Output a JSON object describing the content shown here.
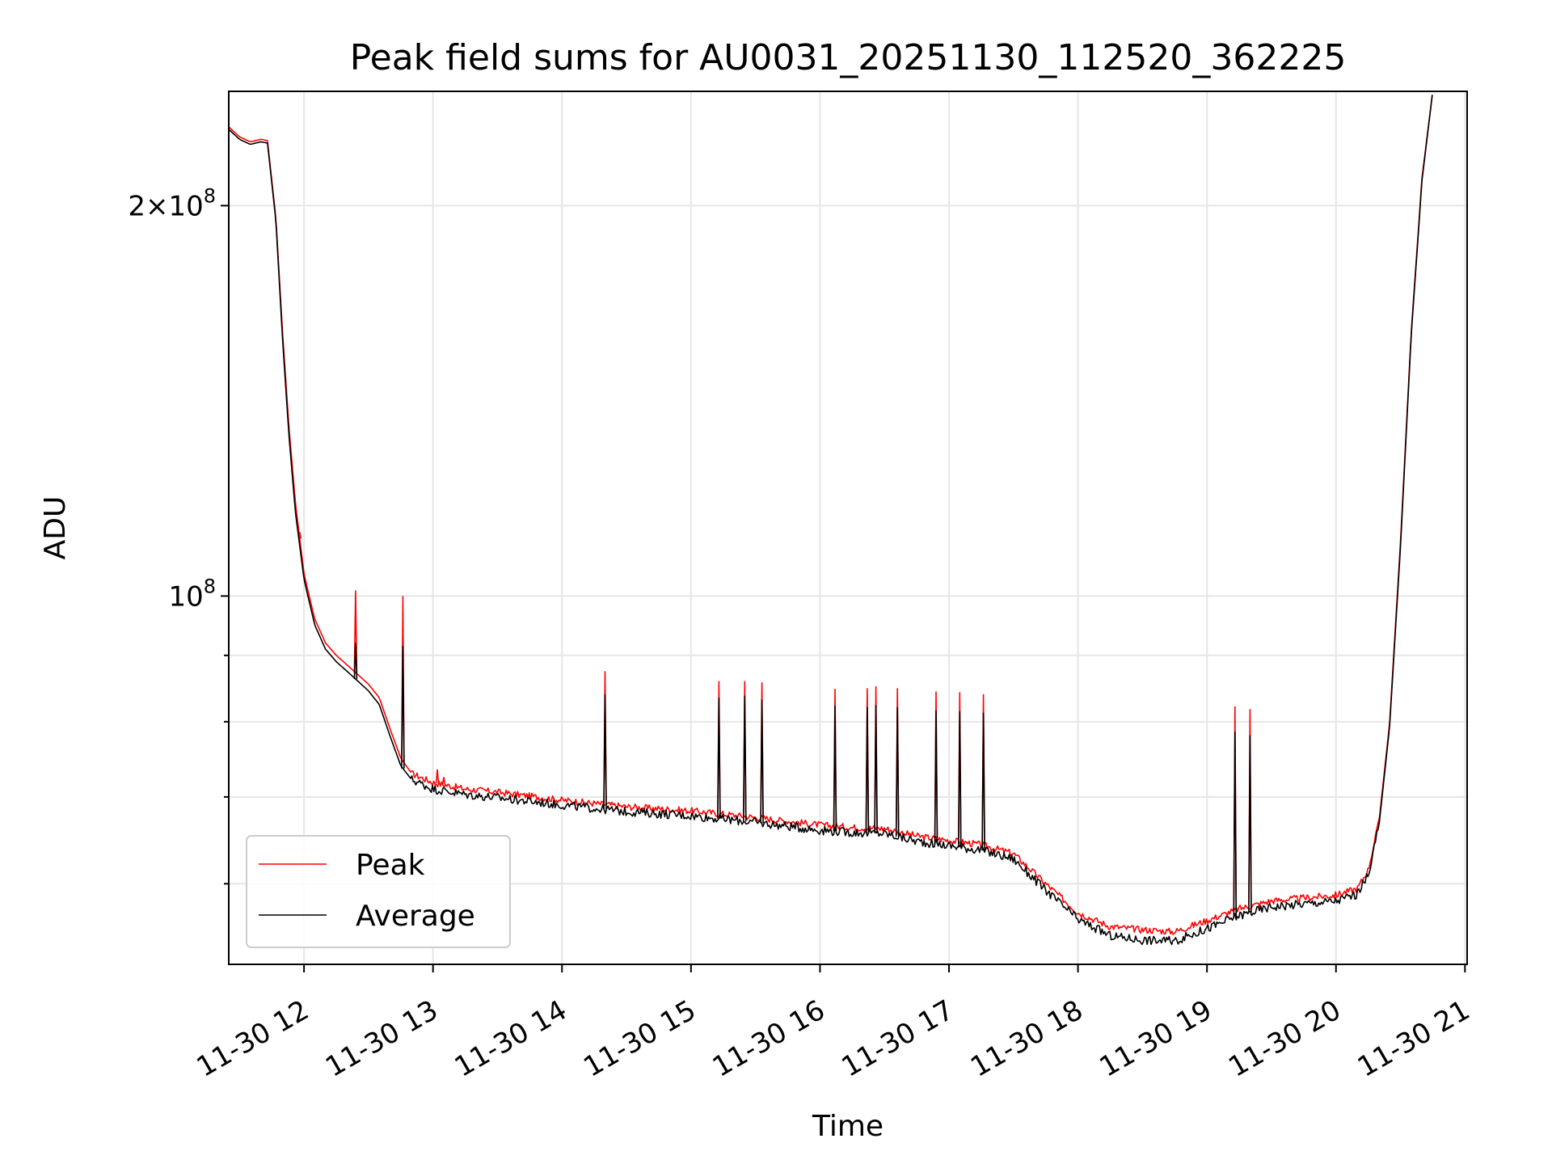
{
  "chart_data": {
    "type": "line",
    "title": "Peak field sums for AU0031_20251130_112520_362225",
    "xlabel": "Time",
    "ylabel": "ADU",
    "y_scale": "log",
    "grid": true,
    "legend_position": "lower-left",
    "xlim": [
      "11-30 11:25",
      "11-30 21:01"
    ],
    "ylim": [
      52000000,
      245000000
    ],
    "x_ticks": [
      "11-30 12",
      "11-30 13",
      "11-30 14",
      "11-30 15",
      "11-30 16",
      "11-30 17",
      "11-30 18",
      "11-30 19",
      "11-30 20",
      "11-30 21"
    ],
    "y_ticks": [
      {
        "value": 100000000,
        "base": "10",
        "exp": "8"
      },
      {
        "value": 200000000,
        "coef": "2",
        "times": "×",
        "base": "10",
        "exp": "8"
      }
    ],
    "y_minor_ticks": [
      60000000,
      70000000,
      80000000,
      90000000
    ],
    "series": [
      {
        "name": "Peak",
        "color": "#ff0000",
        "points": [
          [
            "11-30 11:25",
            230000000
          ],
          [
            "11-30 11:30",
            226000000
          ],
          [
            "11-30 11:35",
            224000000
          ],
          [
            "11-30 11:40",
            225000000
          ],
          [
            "11-30 11:43",
            224500000
          ],
          [
            "11-30 11:47",
            195000000
          ],
          [
            "11-30 11:50",
            160000000
          ],
          [
            "11-30 11:53",
            135000000
          ],
          [
            "11-30 11:56",
            118000000
          ],
          [
            "11-30 12:00",
            104000000
          ],
          [
            "11-30 12:05",
            96000000
          ],
          [
            "11-30 12:10",
            92000000
          ],
          [
            "11-30 12:15",
            90000000
          ],
          [
            "11-30 12:20",
            88500000
          ],
          [
            "11-30 12:25",
            87000000
          ],
          [
            "11-30 12:30",
            85500000
          ],
          [
            "11-30 12:35",
            83500000
          ],
          [
            "11-30 12:40",
            79000000
          ],
          [
            "11-30 12:45",
            75000000
          ],
          [
            "11-30 12:50",
            73000000
          ],
          [
            "11-30 13:00",
            71800000
          ],
          [
            "11-30 13:15",
            71000000
          ],
          [
            "11-30 13:30",
            70600000
          ],
          [
            "11-30 14:00",
            69600000
          ],
          [
            "11-30 14:30",
            68800000
          ],
          [
            "11-30 15:00",
            68300000
          ],
          [
            "11-30 15:30",
            67500000
          ],
          [
            "11-30 16:00",
            66600000
          ],
          [
            "11-30 16:15",
            66300000
          ],
          [
            "11-30 16:30",
            66200000
          ],
          [
            "11-30 16:45",
            65300000
          ],
          [
            "11-30 17:00",
            64800000
          ],
          [
            "11-30 17:15",
            64300000
          ],
          [
            "11-30 17:30",
            63300000
          ],
          [
            "11-30 17:45",
            60000000
          ],
          [
            "11-30 18:00",
            57000000
          ],
          [
            "11-30 18:15",
            55600000
          ],
          [
            "11-30 18:30",
            55300000
          ],
          [
            "11-30 18:45",
            55100000
          ],
          [
            "11-30 19:00",
            56200000
          ],
          [
            "11-30 19:15",
            57400000
          ],
          [
            "11-30 19:30",
            58200000
          ],
          [
            "11-30 19:45",
            58500000
          ],
          [
            "11-30 20:00",
            58800000
          ],
          [
            "11-30 20:10",
            59500000
          ],
          [
            "11-30 20:15",
            61500000
          ],
          [
            "11-30 20:20",
            67000000
          ],
          [
            "11-30 20:25",
            80000000
          ],
          [
            "11-30 20:30",
            110000000
          ],
          [
            "11-30 20:35",
            160000000
          ],
          [
            "11-30 20:40",
            210000000
          ],
          [
            "11-30 20:45",
            245000000
          ]
        ],
        "spikes": [
          [
            "11-30 11:58",
            112000000
          ],
          [
            "11-30 12:24",
            101000000
          ],
          [
            "11-30 12:46",
            100000000
          ],
          [
            "11-30 13:02",
            73500000
          ],
          [
            "11-30 13:05",
            72500000
          ],
          [
            "11-30 14:20",
            87500000
          ],
          [
            "11-30 15:13",
            86000000
          ],
          [
            "11-30 15:25",
            86000000
          ],
          [
            "11-30 15:33",
            85800000
          ],
          [
            "11-30 16:07",
            84800000
          ],
          [
            "11-30 16:22",
            84900000
          ],
          [
            "11-30 16:26",
            85200000
          ],
          [
            "11-30 16:36",
            84900000
          ],
          [
            "11-30 16:54",
            84400000
          ],
          [
            "11-30 17:05",
            84300000
          ],
          [
            "11-30 17:16",
            84000000
          ],
          [
            "11-30 19:13",
            82200000
          ],
          [
            "11-30 19:20",
            81800000
          ]
        ]
      },
      {
        "name": "Average",
        "color": "#000000",
        "points": [
          [
            "11-30 11:25",
            229000000
          ],
          [
            "11-30 11:30",
            225000000
          ],
          [
            "11-30 11:35",
            223000000
          ],
          [
            "11-30 11:40",
            224000000
          ],
          [
            "11-30 11:43",
            223500000
          ],
          [
            "11-30 11:47",
            194000000
          ],
          [
            "11-30 11:50",
            158000000
          ],
          [
            "11-30 11:53",
            133000000
          ],
          [
            "11-30 11:56",
            116000000
          ],
          [
            "11-30 12:00",
            103000000
          ],
          [
            "11-30 12:05",
            95000000
          ],
          [
            "11-30 12:10",
            91000000
          ],
          [
            "11-30 12:15",
            89000000
          ],
          [
            "11-30 12:20",
            87500000
          ],
          [
            "11-30 12:25",
            86000000
          ],
          [
            "11-30 12:30",
            84500000
          ],
          [
            "11-30 12:35",
            82500000
          ],
          [
            "11-30 12:40",
            78000000
          ],
          [
            "11-30 12:45",
            74000000
          ],
          [
            "11-30 12:50",
            72200000
          ],
          [
            "11-30 13:00",
            71000000
          ],
          [
            "11-30 13:15",
            70300000
          ],
          [
            "11-30 13:30",
            69900000
          ],
          [
            "11-30 14:00",
            69000000
          ],
          [
            "11-30 14:30",
            68200000
          ],
          [
            "11-30 15:00",
            67700000
          ],
          [
            "11-30 15:30",
            66900000
          ],
          [
            "11-30 16:00",
            66000000
          ],
          [
            "11-30 16:15",
            65700000
          ],
          [
            "11-30 16:30",
            65600000
          ],
          [
            "11-30 16:45",
            64700000
          ],
          [
            "11-30 17:00",
            64200000
          ],
          [
            "11-30 17:15",
            63700000
          ],
          [
            "11-30 17:30",
            62700000
          ],
          [
            "11-30 17:45",
            59300000
          ],
          [
            "11-30 18:00",
            56300000
          ],
          [
            "11-30 18:15",
            54700000
          ],
          [
            "11-30 18:30",
            54300000
          ],
          [
            "11-30 18:45",
            54200000
          ],
          [
            "11-30 19:00",
            55400000
          ],
          [
            "11-30 19:15",
            56700000
          ],
          [
            "11-30 19:30",
            57600000
          ],
          [
            "11-30 19:45",
            57900000
          ],
          [
            "11-30 20:00",
            58200000
          ],
          [
            "11-30 20:10",
            58900000
          ],
          [
            "11-30 20:15",
            61000000
          ],
          [
            "11-30 20:20",
            66500000
          ],
          [
            "11-30 20:25",
            79500000
          ],
          [
            "11-30 20:30",
            109000000
          ],
          [
            "11-30 20:35",
            159000000
          ],
          [
            "11-30 20:40",
            209000000
          ],
          [
            "11-30 20:45",
            245000000
          ]
        ],
        "spikes": [
          [
            "11-30 12:24",
            92000000
          ],
          [
            "11-30 12:46",
            91500000
          ],
          [
            "11-30 14:20",
            84000000
          ],
          [
            "11-30 15:13",
            83500000
          ],
          [
            "11-30 15:25",
            83800000
          ],
          [
            "11-30 15:33",
            83200000
          ],
          [
            "11-30 16:07",
            82300000
          ],
          [
            "11-30 16:22",
            82100000
          ],
          [
            "11-30 16:26",
            82400000
          ],
          [
            "11-30 16:36",
            82100000
          ],
          [
            "11-30 16:54",
            81600000
          ],
          [
            "11-30 17:05",
            81500000
          ],
          [
            "11-30 17:16",
            81300000
          ],
          [
            "11-30 19:13",
            78600000
          ],
          [
            "11-30 19:20",
            78100000
          ]
        ]
      }
    ]
  }
}
